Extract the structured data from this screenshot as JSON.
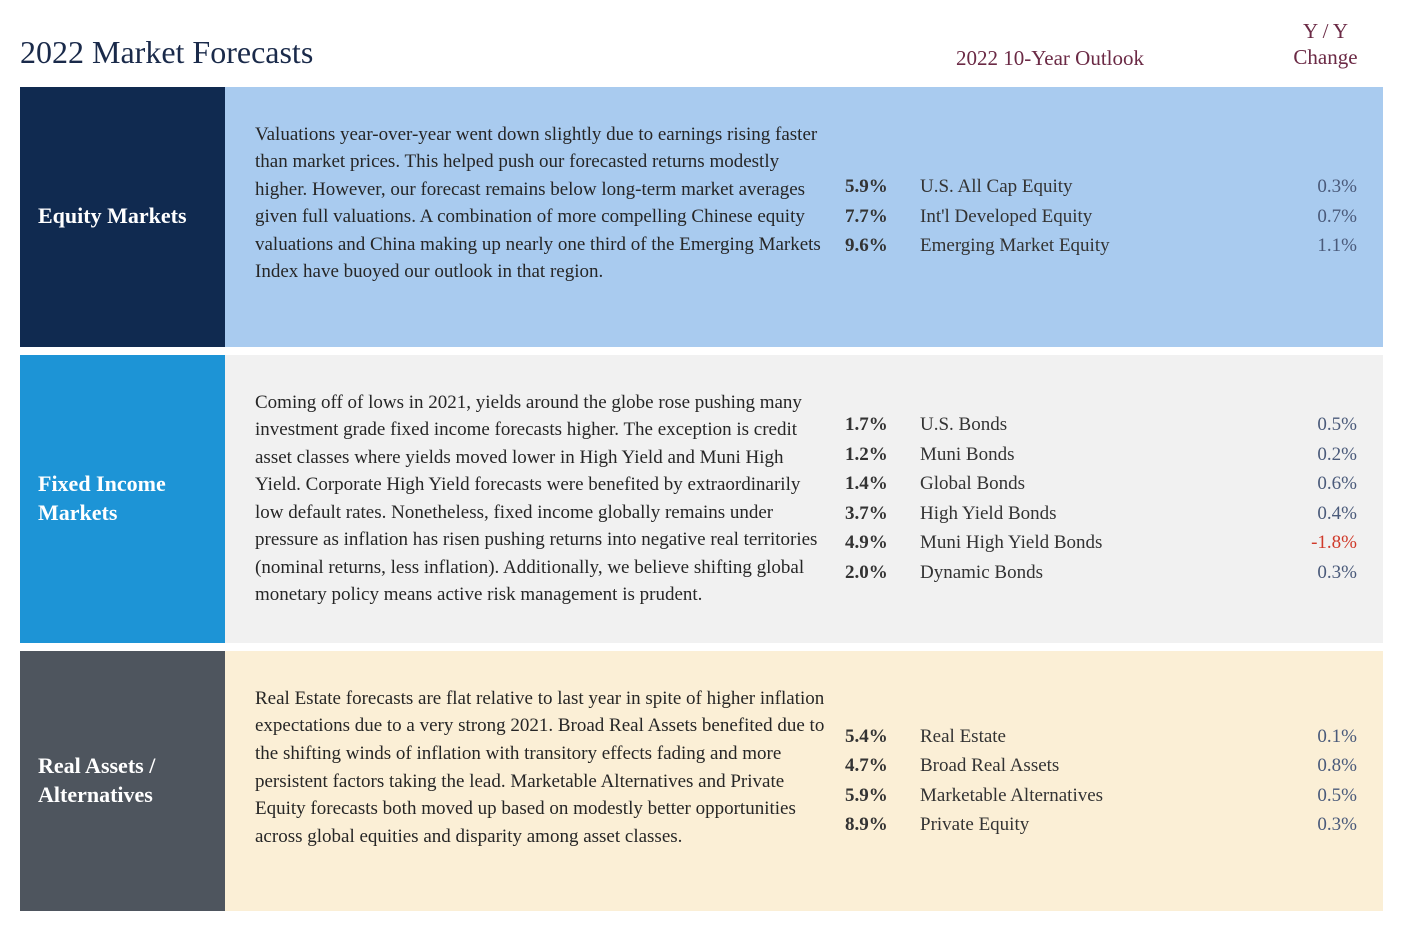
{
  "page": {
    "title": "2022 Market Forecasts",
    "outlook_heading": "2022 10-Year Outlook",
    "change_heading_line1": "Y / Y",
    "change_heading_line2": "Change"
  },
  "colors": {
    "title_text": "#1a2a4a",
    "header_accent": "#6b2a45",
    "yy_text": "#4a5a7a",
    "yy_neg": "#d03a2a",
    "section1_sidebar": "#102a50",
    "section1_body": "#a9cbef",
    "section2_sidebar": "#1d94d6",
    "section2_body": "#f1f1f1",
    "section3_sidebar": "#4e555e",
    "section3_body": "#fbefd6"
  },
  "sections": [
    {
      "label": "Equity Markets",
      "sidebar_bg": "#102a50",
      "body_bg": "#a9cbef",
      "description": "Valuations year-over-year went down slightly due to earnings rising faster than market prices. This helped push our forecasted returns modestly higher. However, our forecast remains below long-term market averages given full valuations. A combination of more compelling Chinese equity valuations and China making up nearly one third of the Emerging Markets Index have buoyed our outlook in that region.",
      "rows": [
        {
          "pct": "5.9%",
          "label": "U.S. All Cap Equity",
          "yy": "0.3%",
          "neg": false
        },
        {
          "pct": "7.7%",
          "label": "Int'l Developed Equity",
          "yy": "0.7%",
          "neg": false
        },
        {
          "pct": "9.6%",
          "label": "Emerging Market Equity",
          "yy": "1.1%",
          "neg": false
        }
      ]
    },
    {
      "label": "Fixed Income Markets",
      "sidebar_bg": "#1d94d6",
      "body_bg": "#f1f1f1",
      "description": "Coming off of lows in 2021, yields around the globe rose pushing many investment grade fixed income forecasts higher. The exception is credit asset classes where yields moved lower in High Yield and Muni High Yield. Corporate High Yield forecasts were benefited by extraordinarily low default rates. Nonetheless, fixed income globally remains under pressure as inflation has risen pushing returns into negative real territories (nominal returns, less inflation). Additionally, we believe shifting global monetary policy means active risk management is prudent.",
      "rows": [
        {
          "pct": "1.7%",
          "label": "U.S. Bonds",
          "yy": "0.5%",
          "neg": false
        },
        {
          "pct": "1.2%",
          "label": "Muni Bonds",
          "yy": "0.2%",
          "neg": false
        },
        {
          "pct": "1.4%",
          "label": "Global Bonds",
          "yy": "0.6%",
          "neg": false
        },
        {
          "pct": "3.7%",
          "label": "High Yield Bonds",
          "yy": "0.4%",
          "neg": false
        },
        {
          "pct": "4.9%",
          "label": "Muni High Yield Bonds",
          "yy": "-1.8%",
          "neg": true
        },
        {
          "pct": "2.0%",
          "label": "Dynamic Bonds",
          "yy": "0.3%",
          "neg": false
        }
      ]
    },
    {
      "label": "Real Assets / Alternatives",
      "sidebar_bg": "#4e555e",
      "body_bg": "#fbefd6",
      "description": "Real Estate forecasts are flat relative to last year in spite of higher inflation expectations due to a very strong 2021. Broad Real Assets benefited due to the shifting winds of inflation with transitory effects fading and more persistent factors taking the lead. Marketable Alternatives and Private Equity forecasts both moved up based on modestly better opportunities across global equities and disparity among asset classes.",
      "rows": [
        {
          "pct": "5.4%",
          "label": "Real Estate",
          "yy": "0.1%",
          "neg": false
        },
        {
          "pct": "4.7%",
          "label": "Broad Real Assets",
          "yy": "0.8%",
          "neg": false
        },
        {
          "pct": "5.9%",
          "label": "Marketable Alternatives",
          "yy": "0.5%",
          "neg": false
        },
        {
          "pct": "8.9%",
          "label": "Private Equity",
          "yy": "0.3%",
          "neg": false
        }
      ]
    }
  ]
}
